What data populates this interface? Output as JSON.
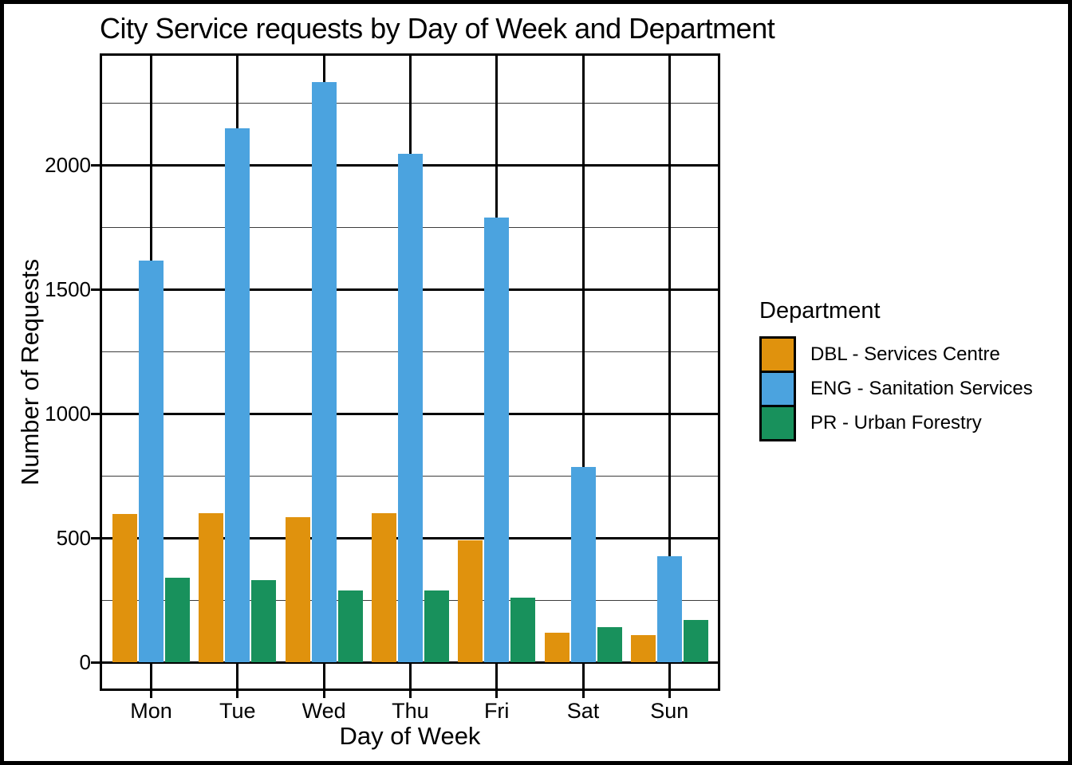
{
  "chart_data": {
    "type": "bar",
    "bar_mode": "grouped",
    "title": "City Service requests by Day of Week and Department",
    "xlabel": "Day of Week",
    "ylabel": "Number of Requests",
    "categories": [
      "Mon",
      "Tue",
      "Wed",
      "Thu",
      "Fri",
      "Sat",
      "Sun"
    ],
    "series": [
      {
        "name": "DBL - Services Centre",
        "color": "#E0920D",
        "values": [
          595,
          600,
          585,
          600,
          490,
          120,
          110
        ]
      },
      {
        "name": "ENG - Sanitation Services",
        "color": "#4BA3DF",
        "values": [
          1615,
          2150,
          2335,
          2045,
          1790,
          785,
          425
        ]
      },
      {
        "name": "PR - Urban Forestry",
        "color": "#18915C",
        "values": [
          340,
          330,
          290,
          290,
          260,
          140,
          170
        ]
      }
    ],
    "legend_title": "Department",
    "legend_position": "right",
    "ylim": [
      0,
      2450
    ],
    "y_major_ticks": [
      0,
      500,
      1000,
      1500,
      2000
    ],
    "y_minor_ticks": [
      250,
      750,
      1250,
      1750,
      2250
    ],
    "grid": "horizontal major+minor, vertical at category centers"
  },
  "colors": {
    "background": "#ffffff",
    "frame": "#000000",
    "panel_border": "#000000",
    "grid_major": "#000000",
    "grid_minor": "#3d3d3d",
    "text": "#000000"
  }
}
